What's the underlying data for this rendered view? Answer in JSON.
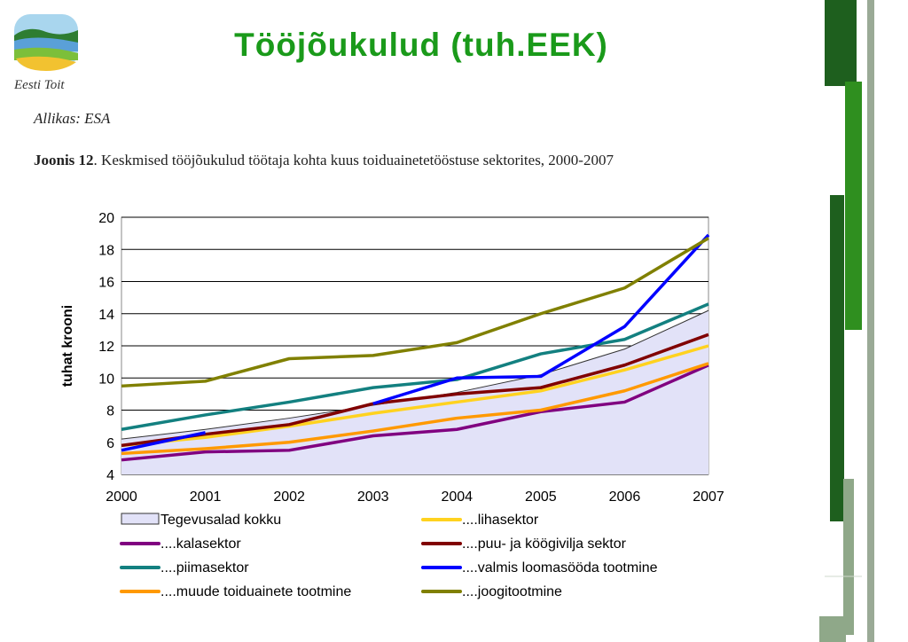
{
  "slide": {
    "title": "Tööjõukulud (tuh.EEK)",
    "logo_text": "Eesti Toit",
    "source": "Allikas: ESA",
    "caption_label": "Joonis 12",
    "caption_text": ". Keskmised tööjõukulud töötaja kohta kuus toiduainetetööstuse sektorites, 2000-2007"
  },
  "colors": {
    "title": "#1a9a1a",
    "deco_dark": "#1e5f1e",
    "deco_mid": "#2f8f1f",
    "deco_light": "#8fa889"
  },
  "chart_data": {
    "type": "line",
    "categories": [
      "2000",
      "2001",
      "2002",
      "2003",
      "2004",
      "2005",
      "2006",
      "2007"
    ],
    "ylabel": "tuhat krooni",
    "ylim": [
      4,
      20
    ],
    "yticks": [
      "4",
      "6",
      "8",
      "10",
      "12",
      "14",
      "16",
      "18",
      "20"
    ],
    "grid": "horizontal",
    "legend_position": "bottom",
    "series": [
      {
        "name": "Tegevusalad kokku",
        "style": "area",
        "color": "#e2e2f8",
        "values": [
          6.2,
          6.8,
          7.5,
          8.3,
          9.1,
          10.2,
          11.8,
          14.2
        ]
      },
      {
        "name": "....lihasektor",
        "style": "line",
        "color": "#ffd21f",
        "values": [
          5.8,
          6.3,
          7.0,
          7.8,
          8.5,
          9.2,
          10.5,
          12.0
        ]
      },
      {
        "name": "....kalasektor",
        "style": "line",
        "color": "#800080",
        "values": [
          4.9,
          5.4,
          5.5,
          6.4,
          6.8,
          7.9,
          8.5,
          10.8
        ]
      },
      {
        "name": "....puu- ja köögivilja sektor",
        "style": "line",
        "color": "#800000",
        "values": [
          5.8,
          6.5,
          7.1,
          8.4,
          9.0,
          9.4,
          10.8,
          12.7
        ]
      },
      {
        "name": "....piimasektor",
        "style": "line",
        "color": "#138080",
        "values": [
          6.8,
          7.7,
          8.5,
          9.4,
          9.9,
          11.5,
          12.4,
          14.6
        ]
      },
      {
        "name": "....valmis loomasööda tootmine",
        "style": "line",
        "color": "#0000ff",
        "values": [
          5.5,
          6.6,
          null,
          8.4,
          10.0,
          10.1,
          13.2,
          18.9
        ]
      },
      {
        "name": "....muude toiduainete tootmine",
        "style": "line",
        "color": "#ff9900",
        "values": [
          5.3,
          5.6,
          6.0,
          6.7,
          7.5,
          8.0,
          9.2,
          10.9
        ]
      },
      {
        "name": "....joogitootmine",
        "style": "line",
        "color": "#808000",
        "values": [
          9.5,
          9.8,
          11.2,
          11.4,
          12.2,
          14.0,
          15.6,
          18.7
        ]
      }
    ]
  }
}
